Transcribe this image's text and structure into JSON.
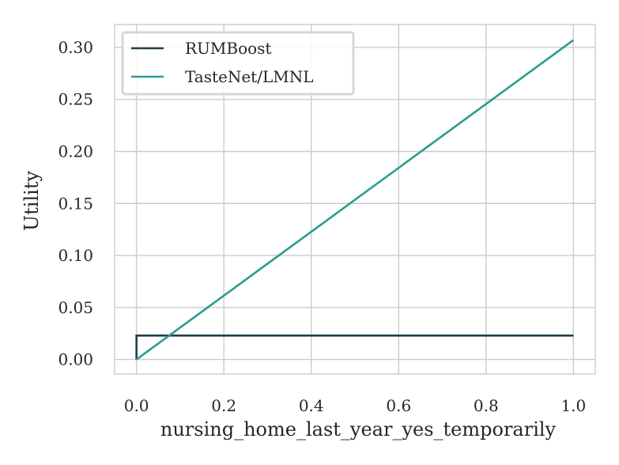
{
  "chart_data": {
    "type": "line",
    "title": "",
    "xlabel": "nursing_home_last_year_yes_temporarily",
    "ylabel": "Utility",
    "xlim": [
      -0.05,
      1.05
    ],
    "ylim": [
      -0.014,
      0.322
    ],
    "xticks": [
      "0.0",
      "0.2",
      "0.4",
      "0.6",
      "0.8",
      "1.0"
    ],
    "yticks": [
      "0.00",
      "0.05",
      "0.10",
      "0.15",
      "0.20",
      "0.25",
      "0.30"
    ],
    "grid": true,
    "legend_position": "upper-left",
    "series": [
      {
        "name": "RUMBoost",
        "color": "#1f3f4a",
        "x": [
          0.0,
          0.0,
          1.0
        ],
        "y": [
          0.0,
          0.023,
          0.023
        ]
      },
      {
        "name": "TasteNet/LMNL",
        "color": "#2a9d8f",
        "x": [
          0.0,
          1.0
        ],
        "y": [
          0.0,
          0.307
        ]
      }
    ]
  }
}
